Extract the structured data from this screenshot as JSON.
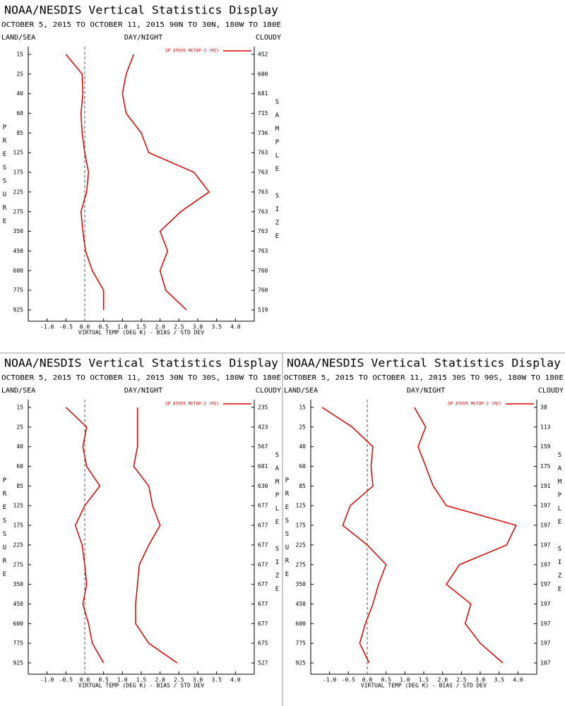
{
  "chart_data": [
    {
      "type": "line",
      "title": "NOAA/NESDIS Vertical Statistics Display",
      "subtitle": "OCTOBER 5, 2015 TO OCTOBER 11, 2015 90N TO 30N, 180W TO 180E",
      "land_sea_label": "LAND/SEA",
      "day_night_label": "DAY/NIGHT",
      "cloud_label": "CLOUDY",
      "y_label": "PRESSURE",
      "y2_label": "SAMPLE SIZE",
      "x_label": "VIRTUAL TEMP (DEG K) - BIAS / STD DEV",
      "legend": "SP ATOVS METOP-2 (M2)",
      "categories": [
        15,
        25,
        40,
        60,
        85,
        125,
        175,
        225,
        275,
        350,
        450,
        600,
        775,
        925
      ],
      "series": [
        {
          "color": "#dd0000",
          "values": [
            -0.5,
            -0.07,
            -0.05,
            -0.1,
            -0.07,
            0.0,
            0.1,
            0.05,
            -0.1,
            -0.05,
            0.02,
            0.2,
            0.5,
            0.5
          ]
        },
        {
          "color": "#dd0000",
          "values": [
            1.3,
            1.1,
            1.0,
            1.1,
            1.5,
            1.7,
            2.9,
            3.3,
            2.55,
            2.0,
            2.2,
            2.0,
            2.15,
            2.7
          ]
        }
      ],
      "sample_sizes": [
        452,
        600,
        681,
        715,
        736,
        763,
        763,
        763,
        763,
        763,
        763,
        760,
        760,
        519
      ],
      "xlim": [
        -1.5,
        4.5
      ],
      "xticks": [
        {
          "value": -1.0,
          "label": "-1.0"
        },
        -0.5,
        {
          "value": 0.0,
          "label": "0.0"
        },
        0.5,
        {
          "value": 1.0,
          "label": "1.0"
        },
        1.5,
        {
          "value": 2.0,
          "label": "2.0"
        },
        2.5,
        {
          "value": 3.0,
          "label": "3.0"
        },
        3.5,
        {
          "value": 4.0,
          "label": "4.0"
        }
      ]
    },
    {
      "type": "line",
      "title": "NOAA/NESDIS Vertical Statistics Display",
      "subtitle": "OCTOBER 5, 2015 TO OCTOBER 11, 2015 30N TO 30S, 180W TO 180E",
      "land_sea_label": "LAND/SEA",
      "day_night_label": "DAY/NIGHT",
      "cloud_label": "CLOUDY",
      "y_label": "PRESSURE",
      "y2_label": "SAMPLE SIZE",
      "x_label": "VIRTUAL TEMP (DEG K) - BIAS / STD DEV",
      "legend": "SP ATOVS METOP-2 (M2)",
      "categories": [
        15,
        25,
        40,
        60,
        85,
        125,
        175,
        225,
        275,
        350,
        450,
        600,
        775,
        925
      ],
      "series": [
        {
          "color": "#dd0000",
          "values": [
            -0.5,
            0.05,
            -0.05,
            0.05,
            0.4,
            0.0,
            -0.25,
            -0.07,
            0.0,
            0.05,
            -0.05,
            0.1,
            0.2,
            0.5
          ]
        },
        {
          "color": "#dd0000",
          "values": [
            1.4,
            1.4,
            1.4,
            1.3,
            1.7,
            1.8,
            2.0,
            1.7,
            1.45,
            1.4,
            1.35,
            1.35,
            1.7,
            2.45
          ]
        }
      ],
      "sample_sizes": [
        235,
        423,
        567,
        601,
        630,
        677,
        677,
        677,
        677,
        677,
        677,
        677,
        675,
        527
      ],
      "xlim": [
        -1.5,
        4.5
      ],
      "xticks": [
        {
          "value": -1.0,
          "label": "-1.0"
        },
        -0.5,
        {
          "value": 0.0,
          "label": "0.0"
        },
        0.5,
        {
          "value": 1.0,
          "label": "1.0"
        },
        1.5,
        {
          "value": 2.0,
          "label": "2.0"
        },
        2.5,
        {
          "value": 3.0,
          "label": "3.0"
        },
        3.5,
        {
          "value": 4.0,
          "label": "4.0"
        }
      ]
    },
    {
      "type": "line",
      "title": "NOAA/NESDIS Vertical Statistics Display",
      "subtitle": "OCTOBER 5, 2015 TO OCTOBER 11, 2015 30S TO 90S, 180W TO 180E",
      "land_sea_label": "LAND/SEA",
      "day_night_label": "DAY/NIGHT",
      "cloud_label": "CLOUDY",
      "y_label": "PRESSURE",
      "y2_label": "SAMPLE SIZE",
      "x_label": "VIRTUAL TEMP (DEG K) - BIAS / STD DEV",
      "legend": "SP ATOVS METOP-2 (M2)",
      "categories": [
        15,
        25,
        40,
        60,
        85,
        125,
        175,
        225,
        275,
        350,
        450,
        600,
        775,
        925
      ],
      "series": [
        {
          "color": "#dd0000",
          "values": [
            -1.2,
            -0.4,
            0.15,
            0.1,
            0.15,
            -0.45,
            -0.65,
            0.0,
            0.5,
            0.3,
            0.15,
            -0.05,
            -0.2,
            0.05
          ]
        },
        {
          "color": "#dd0000",
          "values": [
            1.25,
            1.55,
            1.35,
            1.55,
            1.75,
            2.1,
            3.95,
            3.7,
            2.45,
            2.1,
            2.75,
            2.6,
            3.0,
            3.6
          ]
        }
      ],
      "sample_sizes": [
        38,
        113,
        159,
        175,
        191,
        197,
        197,
        197,
        197,
        197,
        197,
        197,
        197,
        107
      ],
      "xlim": [
        -1.5,
        4.5
      ],
      "xticks": [
        {
          "value": -1.0,
          "label": "-1.0"
        },
        -0.5,
        {
          "value": 0.0,
          "label": "0.0"
        },
        0.5,
        {
          "value": 1.0,
          "label": "1.0"
        },
        1.5,
        {
          "value": 2.0,
          "label": "2.0"
        },
        2.5,
        {
          "value": 3.0,
          "label": "3.0"
        },
        3.5,
        {
          "value": 4.0,
          "label": "4.0"
        }
      ]
    }
  ]
}
